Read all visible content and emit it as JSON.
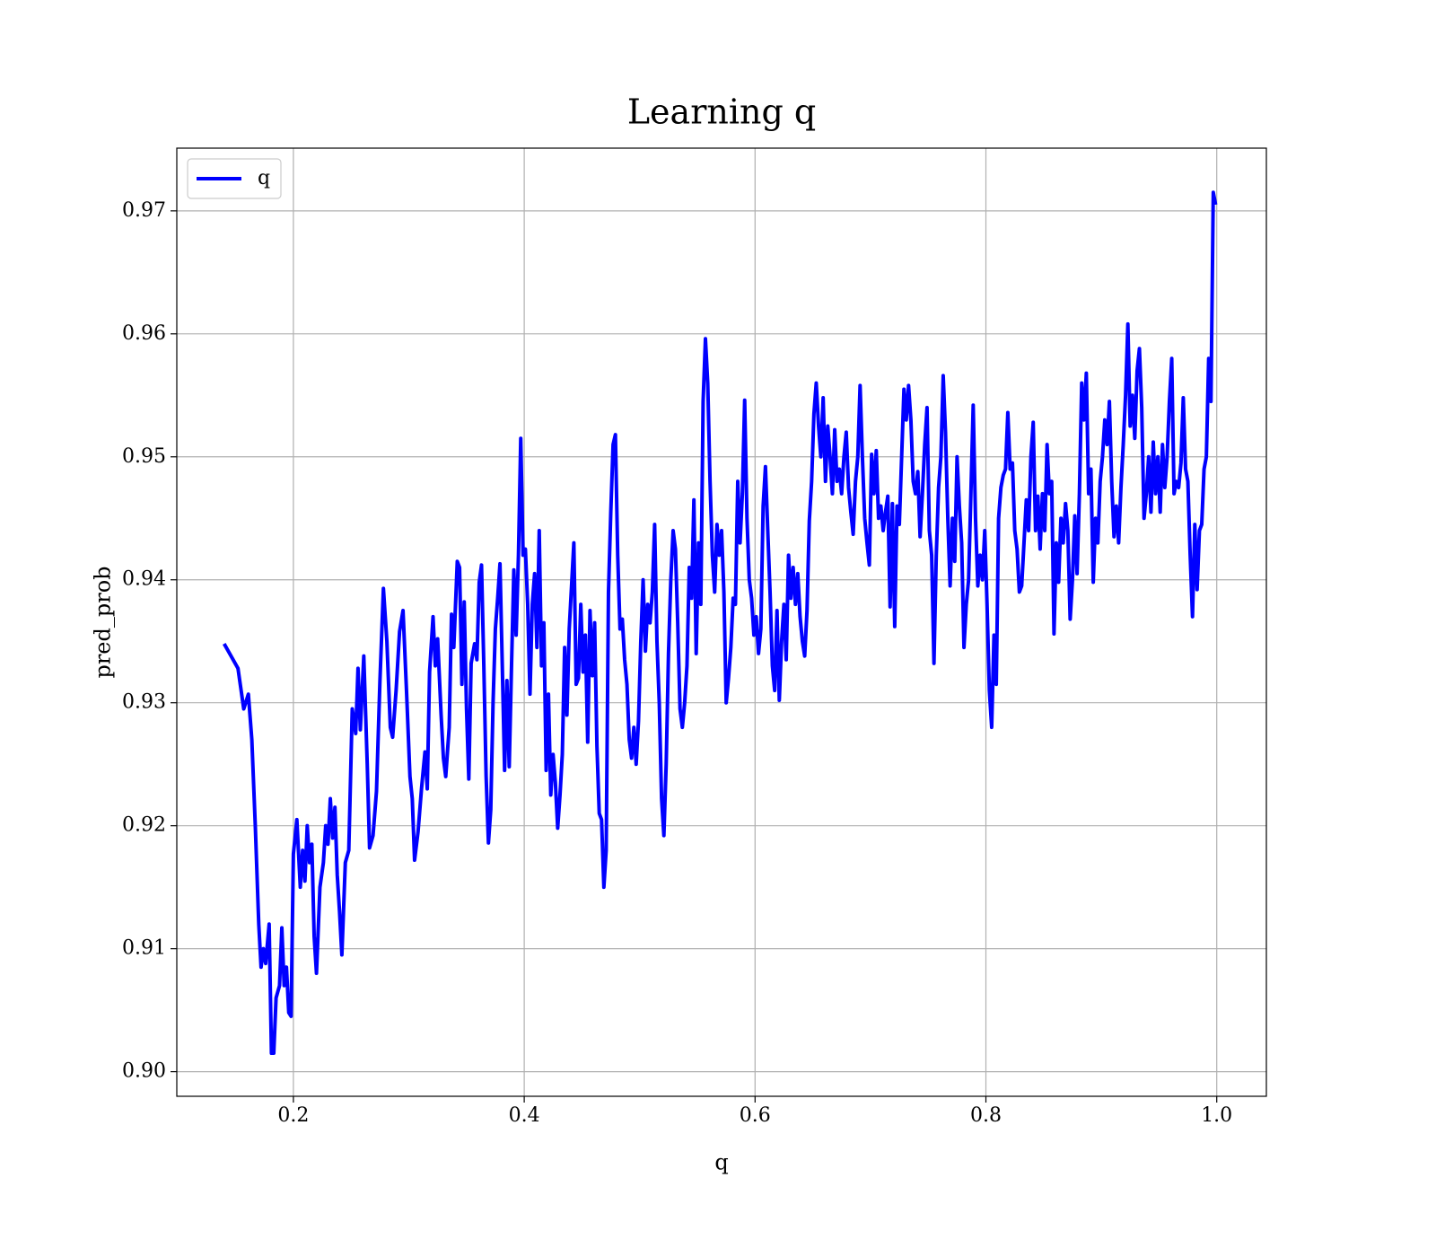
{
  "chart_data": {
    "type": "line",
    "title": "Learning q",
    "xlabel": "q",
    "ylabel": "pred_prob",
    "x": [
      0.14,
      0.152,
      0.157,
      0.161,
      0.164,
      0.167,
      0.17,
      0.172,
      0.174,
      0.176,
      0.179,
      0.181,
      0.183,
      0.185,
      0.188,
      0.19,
      0.192,
      0.194,
      0.196,
      0.198,
      0.2,
      0.203,
      0.206,
      0.208,
      0.21,
      0.212,
      0.214,
      0.216,
      0.218,
      0.22,
      0.223,
      0.226,
      0.228,
      0.23,
      0.232,
      0.234,
      0.236,
      0.238,
      0.24,
      0.242,
      0.245,
      0.248,
      0.251,
      0.254,
      0.256,
      0.258,
      0.261,
      0.264,
      0.266,
      0.269,
      0.272,
      0.275,
      0.278,
      0.281,
      0.284,
      0.286,
      0.289,
      0.292,
      0.295,
      0.298,
      0.301,
      0.303,
      0.305,
      0.308,
      0.311,
      0.314,
      0.316,
      0.318,
      0.321,
      0.323,
      0.325,
      0.328,
      0.33,
      0.332,
      0.335,
      0.337,
      0.339,
      0.342,
      0.344,
      0.346,
      0.348,
      0.35,
      0.352,
      0.354,
      0.357,
      0.359,
      0.361,
      0.363,
      0.365,
      0.367,
      0.369,
      0.371,
      0.373,
      0.375,
      0.377,
      0.379,
      0.381,
      0.383,
      0.385,
      0.387,
      0.389,
      0.391,
      0.393,
      0.395,
      0.397,
      0.399,
      0.401,
      0.403,
      0.405,
      0.407,
      0.409,
      0.411,
      0.413,
      0.415,
      0.417,
      0.419,
      0.421,
      0.423,
      0.425,
      0.427,
      0.429,
      0.431,
      0.433,
      0.435,
      0.437,
      0.439,
      0.441,
      0.443,
      0.445,
      0.447,
      0.449,
      0.451,
      0.453,
      0.455,
      0.457,
      0.459,
      0.461,
      0.463,
      0.465,
      0.467,
      0.469,
      0.471,
      0.473,
      0.475,
      0.477,
      0.479,
      0.481,
      0.483,
      0.485,
      0.487,
      0.489,
      0.491,
      0.493,
      0.495,
      0.497,
      0.499,
      0.501,
      0.503,
      0.505,
      0.507,
      0.509,
      0.511,
      0.513,
      0.515,
      0.517,
      0.519,
      0.521,
      0.523,
      0.525,
      0.527,
      0.529,
      0.531,
      0.533,
      0.535,
      0.537,
      0.539,
      0.541,
      0.543,
      0.545,
      0.547,
      0.549,
      0.551,
      0.553,
      0.555,
      0.557,
      0.559,
      0.561,
      0.563,
      0.565,
      0.567,
      0.569,
      0.571,
      0.573,
      0.575,
      0.577,
      0.579,
      0.581,
      0.583,
      0.585,
      0.587,
      0.589,
      0.591,
      0.593,
      0.595,
      0.597,
      0.599,
      0.601,
      0.603,
      0.605,
      0.607,
      0.609,
      0.611,
      0.613,
      0.615,
      0.617,
      0.619,
      0.621,
      0.623,
      0.625,
      0.627,
      0.629,
      0.631,
      0.633,
      0.635,
      0.637,
      0.639,
      0.641,
      0.643,
      0.645,
      0.647,
      0.649,
      0.651,
      0.653,
      0.655,
      0.657,
      0.659,
      0.661,
      0.663,
      0.665,
      0.667,
      0.669,
      0.671,
      0.673,
      0.675,
      0.677,
      0.679,
      0.681,
      0.683,
      0.685,
      0.687,
      0.689,
      0.691,
      0.693,
      0.695,
      0.697,
      0.699,
      0.701,
      0.703,
      0.705,
      0.707,
      0.709,
      0.711,
      0.713,
      0.715,
      0.717,
      0.719,
      0.721,
      0.723,
      0.725,
      0.727,
      0.729,
      0.731,
      0.733,
      0.735,
      0.737,
      0.739,
      0.741,
      0.743,
      0.745,
      0.747,
      0.749,
      0.751,
      0.753,
      0.755,
      0.757,
      0.759,
      0.761,
      0.763,
      0.765,
      0.767,
      0.769,
      0.771,
      0.773,
      0.775,
      0.777,
      0.779,
      0.781,
      0.783,
      0.785,
      0.787,
      0.789,
      0.791,
      0.793,
      0.795,
      0.797,
      0.799,
      0.801,
      0.803,
      0.805,
      0.807,
      0.809,
      0.811,
      0.813,
      0.815,
      0.817,
      0.819,
      0.821,
      0.823,
      0.825,
      0.827,
      0.829,
      0.831,
      0.833,
      0.835,
      0.837,
      0.839,
      0.841,
      0.843,
      0.845,
      0.847,
      0.849,
      0.851,
      0.853,
      0.855,
      0.857,
      0.859,
      0.861,
      0.863,
      0.865,
      0.867,
      0.869,
      0.871,
      0.873,
      0.875,
      0.877,
      0.879,
      0.881,
      0.883,
      0.885,
      0.887,
      0.889,
      0.891,
      0.893,
      0.895,
      0.897,
      0.899,
      0.901,
      0.903,
      0.905,
      0.907,
      0.909,
      0.911,
      0.913,
      0.915,
      0.917,
      0.919,
      0.921,
      0.923,
      0.925,
      0.927,
      0.929,
      0.931,
      0.933,
      0.935,
      0.937,
      0.939,
      0.941,
      0.943,
      0.945,
      0.947,
      0.949,
      0.951,
      0.953,
      0.955,
      0.957,
      0.959,
      0.961,
      0.963,
      0.965,
      0.967,
      0.969,
      0.971,
      0.973,
      0.975,
      0.977,
      0.979,
      0.981,
      0.983,
      0.985,
      0.987,
      0.989,
      0.991,
      0.993,
      0.995,
      0.997,
      0.999
    ],
    "series": [
      {
        "name": "q",
        "color": "#0000ff",
        "values": [
          0.9348,
          0.9328,
          0.9295,
          0.9307,
          0.927,
          0.92,
          0.912,
          0.9085,
          0.91,
          0.9088,
          0.912,
          0.9015,
          0.9015,
          0.906,
          0.907,
          0.9117,
          0.907,
          0.9085,
          0.9048,
          0.9045,
          0.9177,
          0.9205,
          0.915,
          0.918,
          0.9155,
          0.92,
          0.917,
          0.9185,
          0.911,
          0.908,
          0.915,
          0.917,
          0.92,
          0.9185,
          0.9222,
          0.919,
          0.9215,
          0.916,
          0.913,
          0.9095,
          0.917,
          0.918,
          0.9295,
          0.9275,
          0.9328,
          0.9278,
          0.9338,
          0.925,
          0.9182,
          0.9192,
          0.9228,
          0.9318,
          0.9393,
          0.935,
          0.928,
          0.9272,
          0.931,
          0.9358,
          0.9375,
          0.931,
          0.924,
          0.9222,
          0.9172,
          0.9195,
          0.923,
          0.926,
          0.923,
          0.9325,
          0.937,
          0.933,
          0.9352,
          0.929,
          0.9255,
          0.924,
          0.928,
          0.9372,
          0.9345,
          0.9415,
          0.941,
          0.9315,
          0.9382,
          0.9295,
          0.9238,
          0.9332,
          0.9348,
          0.9335,
          0.9398,
          0.9412,
          0.933,
          0.924,
          0.9186,
          0.9213,
          0.93,
          0.936,
          0.9385,
          0.9413,
          0.933,
          0.9245,
          0.9318,
          0.9248,
          0.933,
          0.9408,
          0.9355,
          0.942,
          0.9515,
          0.942,
          0.9425,
          0.938,
          0.9307,
          0.938,
          0.9405,
          0.9345,
          0.944,
          0.933,
          0.9365,
          0.9245,
          0.9307,
          0.9225,
          0.9258,
          0.9235,
          0.9198,
          0.9225,
          0.9258,
          0.9345,
          0.929,
          0.936,
          0.9395,
          0.943,
          0.9315,
          0.932,
          0.938,
          0.9325,
          0.9355,
          0.9268,
          0.9375,
          0.9322,
          0.9365,
          0.9265,
          0.921,
          0.9205,
          0.915,
          0.918,
          0.939,
          0.9455,
          0.951,
          0.9518,
          0.942,
          0.936,
          0.9368,
          0.9335,
          0.9315,
          0.927,
          0.9255,
          0.928,
          0.925,
          0.9285,
          0.935,
          0.94,
          0.9342,
          0.938,
          0.9365,
          0.939,
          0.9445,
          0.935,
          0.93,
          0.9222,
          0.9192,
          0.925,
          0.934,
          0.94,
          0.944,
          0.9425,
          0.9365,
          0.9295,
          0.928,
          0.93,
          0.933,
          0.941,
          0.9385,
          0.9465,
          0.934,
          0.943,
          0.938,
          0.9545,
          0.9596,
          0.956,
          0.948,
          0.942,
          0.939,
          0.9445,
          0.942,
          0.944,
          0.939,
          0.93,
          0.932,
          0.9345,
          0.9385,
          0.938,
          0.948,
          0.943,
          0.947,
          0.9546,
          0.945,
          0.94,
          0.9385,
          0.9355,
          0.937,
          0.934,
          0.936,
          0.946,
          0.9492,
          0.944,
          0.939,
          0.933,
          0.931,
          0.9375,
          0.9302,
          0.935,
          0.938,
          0.9335,
          0.942,
          0.9385,
          0.941,
          0.938,
          0.9405,
          0.937,
          0.935,
          0.9338,
          0.9375,
          0.9448,
          0.948,
          0.9535,
          0.956,
          0.9525,
          0.95,
          0.9548,
          0.948,
          0.9525,
          0.95,
          0.947,
          0.9522,
          0.948,
          0.949,
          0.947,
          0.95,
          0.952,
          0.9475,
          0.9455,
          0.9437,
          0.948,
          0.95,
          0.9558,
          0.95,
          0.945,
          0.943,
          0.9412,
          0.9502,
          0.947,
          0.9505,
          0.945,
          0.946,
          0.944,
          0.9455,
          0.9468,
          0.9378,
          0.9462,
          0.9362,
          0.946,
          0.9445,
          0.95,
          0.9555,
          0.953,
          0.9558,
          0.953,
          0.948,
          0.947,
          0.9488,
          0.9435,
          0.947,
          0.951,
          0.954,
          0.944,
          0.942,
          0.9332,
          0.942,
          0.9475,
          0.95,
          0.9566,
          0.952,
          0.945,
          0.9395,
          0.945,
          0.9415,
          0.95,
          0.946,
          0.943,
          0.9345,
          0.938,
          0.94,
          0.947,
          0.9542,
          0.945,
          0.9395,
          0.942,
          0.94,
          0.944,
          0.938,
          0.931,
          0.928,
          0.9355,
          0.9315,
          0.945,
          0.9475,
          0.9485,
          0.949,
          0.9536,
          0.949,
          0.9495,
          0.944,
          0.9425,
          0.939,
          0.9395,
          0.943,
          0.9465,
          0.944,
          0.95,
          0.9528,
          0.944,
          0.9468,
          0.9425,
          0.947,
          0.944,
          0.951,
          0.947,
          0.948,
          0.9356,
          0.943,
          0.9398,
          0.945,
          0.943,
          0.9462,
          0.944,
          0.9368,
          0.94,
          0.9452,
          0.9405,
          0.947,
          0.956,
          0.953,
          0.9568,
          0.947,
          0.949,
          0.9398,
          0.945,
          0.943,
          0.948,
          0.95,
          0.953,
          0.951,
          0.9545,
          0.948,
          0.9435,
          0.946,
          0.943,
          0.9475,
          0.951,
          0.955,
          0.9608,
          0.9525,
          0.955,
          0.9515,
          0.957,
          0.9588,
          0.954,
          0.945,
          0.947,
          0.95,
          0.9455,
          0.9512,
          0.947,
          0.95,
          0.9455,
          0.951,
          0.9475,
          0.95,
          0.9545,
          0.958,
          0.947,
          0.948,
          0.9475,
          0.9495,
          0.9548,
          0.949,
          0.948,
          0.942,
          0.937,
          0.9445,
          0.9392,
          0.944,
          0.9445,
          0.949,
          0.95,
          0.958,
          0.9545,
          0.9715,
          0.9705
        ]
      }
    ],
    "xlim": [
      0.099,
      1.043
    ],
    "xticks": [
      0.2,
      0.4,
      0.6,
      0.8,
      {
        "value": 1,
        "label": "1.0"
      }
    ],
    "ylim": [
      0.898,
      0.9751
    ],
    "yticks": [
      {
        "value": 0.9,
        "label": "0.90"
      },
      0.91,
      0.92,
      0.93,
      0.94,
      0.95,
      0.96,
      0.97
    ],
    "grid": true,
    "legend": "upper left"
  }
}
